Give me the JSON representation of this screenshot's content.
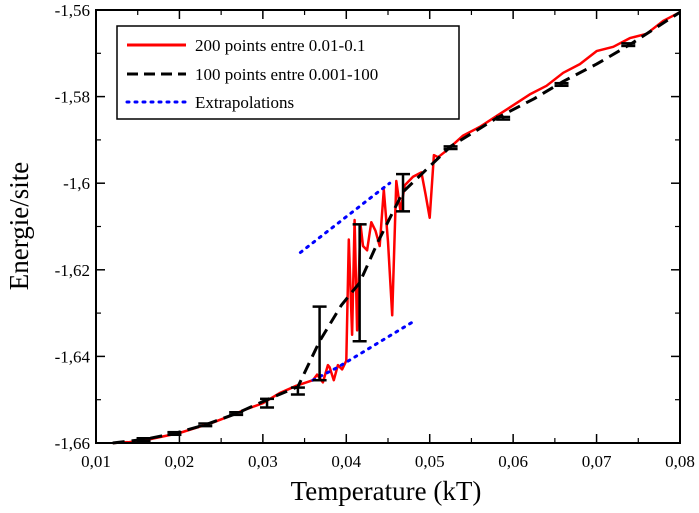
{
  "chart_data": {
    "type": "line",
    "title": "",
    "xlabel": "Temperature (kT)",
    "ylabel": "Energie/site",
    "xlim": [
      0.01,
      0.08
    ],
    "ylim": [
      -1.66,
      -1.56
    ],
    "xticks": [
      {
        "value": 0.01,
        "label": "0,01"
      },
      {
        "value": 0.02,
        "label": "0,02"
      },
      {
        "value": 0.03,
        "label": "0,03"
      },
      {
        "value": 0.04,
        "label": "0,04"
      },
      {
        "value": 0.05,
        "label": "0,05"
      },
      {
        "value": 0.06,
        "label": "0,06"
      },
      {
        "value": 0.07,
        "label": "0,07"
      },
      {
        "value": 0.08,
        "label": "0,08"
      }
    ],
    "yticks": [
      {
        "value": -1.66,
        "label": "-1,66"
      },
      {
        "value": -1.64,
        "label": "-1,64"
      },
      {
        "value": -1.62,
        "label": "-1,62"
      },
      {
        "value": -1.6,
        "label": "-1,6"
      },
      {
        "value": -1.58,
        "label": "-1,58"
      },
      {
        "value": -1.56,
        "label": "-1,56"
      }
    ],
    "grid": false,
    "legend_position": "top-left",
    "series": [
      {
        "name": "200 points entre 0.01-0.1",
        "color": "#ff0000",
        "style": "solid",
        "x": [
          0.012,
          0.014,
          0.016,
          0.018,
          0.02,
          0.022,
          0.024,
          0.026,
          0.028,
          0.03,
          0.032,
          0.034,
          0.036,
          0.0365,
          0.0372,
          0.0378,
          0.038,
          0.0385,
          0.039,
          0.0395,
          0.04,
          0.0403,
          0.0407,
          0.041,
          0.0413,
          0.0417,
          0.042,
          0.0425,
          0.043,
          0.0435,
          0.044,
          0.0445,
          0.045,
          0.0455,
          0.046,
          0.0465,
          0.047,
          0.048,
          0.049,
          0.0495,
          0.05,
          0.0505,
          0.051,
          0.052,
          0.054,
          0.056,
          0.058,
          0.06,
          0.062,
          0.064,
          0.066,
          0.068,
          0.07,
          0.072,
          0.074,
          0.076,
          0.078,
          0.08
        ],
        "y": [
          -1.66,
          -1.6598,
          -1.6593,
          -1.6585,
          -1.6577,
          -1.6565,
          -1.6553,
          -1.6538,
          -1.6522,
          -1.6508,
          -1.6485,
          -1.6468,
          -1.6455,
          -1.6442,
          -1.646,
          -1.642,
          -1.6425,
          -1.6455,
          -1.642,
          -1.643,
          -1.641,
          -1.613,
          -1.635,
          -1.6085,
          -1.634,
          -1.6095,
          -1.6145,
          -1.6155,
          -1.609,
          -1.611,
          -1.6145,
          -1.6015,
          -1.6135,
          -1.6305,
          -1.5995,
          -1.6065,
          -1.6005,
          -1.5985,
          -1.5975,
          -1.6025,
          -1.608,
          -1.5935,
          -1.594,
          -1.5925,
          -1.589,
          -1.587,
          -1.5845,
          -1.582,
          -1.5795,
          -1.5775,
          -1.5745,
          -1.5725,
          -1.5695,
          -1.5685,
          -1.5665,
          -1.5655,
          -1.5625,
          -1.5605
        ]
      },
      {
        "name": "100 points entre 0.001-100",
        "color": "#000000",
        "style": "dashed",
        "x": [
          0.012,
          0.0157,
          0.0194,
          0.0231,
          0.0268,
          0.0305,
          0.0342,
          0.0368,
          0.0394,
          0.0416,
          0.0438,
          0.0468,
          0.0525,
          0.058,
          0.0625,
          0.066,
          0.07,
          0.074,
          0.08
        ],
        "y": [
          -1.66,
          -1.6592,
          -1.6578,
          -1.6558,
          -1.6532,
          -1.65,
          -1.647,
          -1.6365,
          -1.6282,
          -1.623,
          -1.6135,
          -1.602,
          -1.5915,
          -1.585,
          -1.5805,
          -1.5765,
          -1.5725,
          -1.568,
          -1.5605
        ]
      },
      {
        "name": "Extrapolations",
        "color": "#0000ff",
        "style": "dotted",
        "segments": [
          {
            "x": [
              0.0345,
              0.0375,
              0.0405,
              0.0435,
              0.0452
            ],
            "y": [
              -1.616,
              -1.6115,
              -1.607,
              -1.6025,
              -1.6
            ]
          },
          {
            "x": [
              0.036,
              0.039,
              0.042,
              0.045,
              0.048
            ],
            "y": [
              -1.6455,
              -1.6425,
              -1.639,
              -1.6355,
              -1.632
            ]
          }
        ]
      }
    ],
    "error_bars": {
      "color": "#000000",
      "points": [
        {
          "x": 0.0157,
          "y": -1.6592,
          "err": 0.0003
        },
        {
          "x": 0.0194,
          "y": -1.6578,
          "err": 0.0003
        },
        {
          "x": 0.0231,
          "y": -1.6558,
          "err": 0.0003
        },
        {
          "x": 0.0268,
          "y": -1.6532,
          "err": 0.0003
        },
        {
          "x": 0.0305,
          "y": -1.6508,
          "err": 0.001
        },
        {
          "x": 0.0342,
          "y": -1.648,
          "err": 0.0008
        },
        {
          "x": 0.0368,
          "y": -1.637,
          "err": 0.0085
        },
        {
          "x": 0.0416,
          "y": -1.623,
          "err": 0.0135
        },
        {
          "x": 0.0468,
          "y": -1.6022,
          "err": 0.0043
        },
        {
          "x": 0.0525,
          "y": -1.5918,
          "err": 0.0003
        },
        {
          "x": 0.0588,
          "y": -1.585,
          "err": 0.0003
        },
        {
          "x": 0.0658,
          "y": -1.5772,
          "err": 0.0003
        },
        {
          "x": 0.0738,
          "y": -1.568,
          "err": 0.0003
        }
      ]
    }
  }
}
